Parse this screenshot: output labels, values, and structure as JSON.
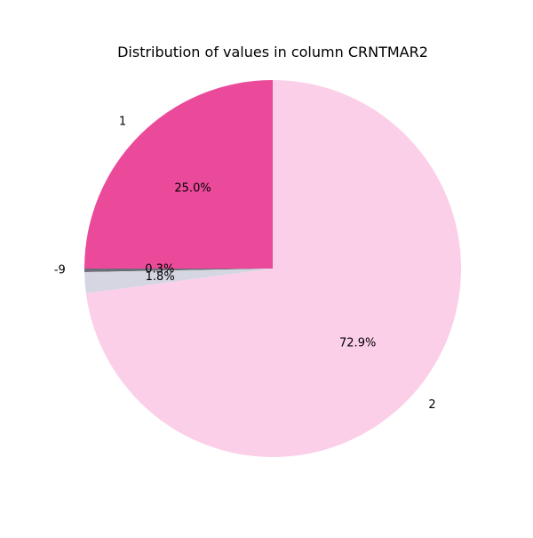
{
  "chart_data": {
    "type": "pie",
    "title": "Distribution of values in column CRNTMAR2",
    "slices": [
      {
        "label": "1",
        "pct_label": "25.0%",
        "value": 25.0,
        "color": "#eb4a9b"
      },
      {
        "label": "-9",
        "pct_label": "0.3%",
        "value": 0.3,
        "color": "#6d6d7a"
      },
      {
        "label": "",
        "pct_label": "1.8%",
        "value": 1.8,
        "color": "#d5d6e2"
      },
      {
        "label": "2",
        "pct_label": "72.9%",
        "value": 72.9,
        "color": "#fbcfe8"
      }
    ]
  }
}
